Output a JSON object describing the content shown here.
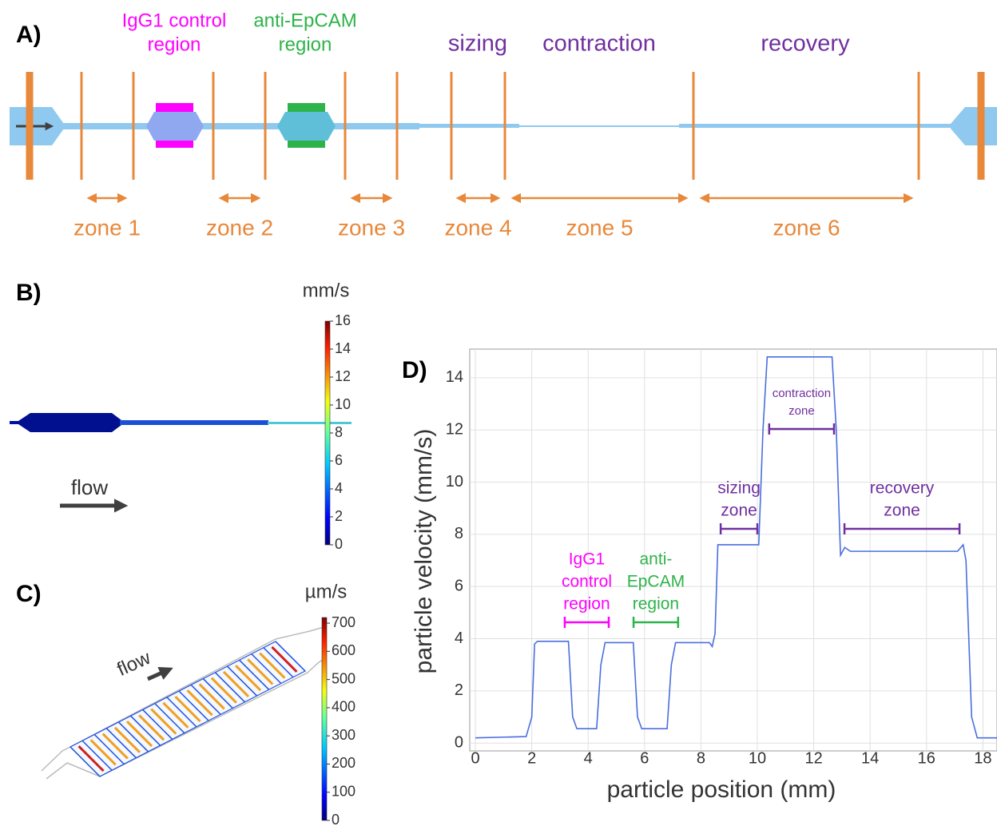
{
  "panel_a": {
    "label": "A)",
    "regions": [
      {
        "lines": [
          "IgG1 control",
          "region"
        ],
        "color": "#ff00ff"
      },
      {
        "lines": [
          "anti-EpCAM",
          "region"
        ],
        "color": "#2eb34a"
      }
    ],
    "sections": [
      "sizing",
      "contraction",
      "recovery"
    ],
    "zones": [
      "zone 1",
      "zone 2",
      "zone 3",
      "zone 4",
      "zone 5",
      "zone 6"
    ]
  },
  "panel_b": {
    "label": "B)",
    "unit": "mm/s",
    "flow": "flow",
    "lim": [
      0,
      16
    ],
    "ticks": [
      0,
      2,
      4,
      6,
      8,
      10,
      12,
      14,
      16
    ]
  },
  "panel_c": {
    "label": "C)",
    "unit": "µm/s",
    "flow": "flow",
    "lim": [
      0,
      720
    ],
    "ticks": [
      0,
      100,
      200,
      300,
      400,
      500,
      600,
      700
    ]
  },
  "chart_data": {
    "type": "line",
    "label": "D)",
    "x_label": "particle position (mm)",
    "y_label": "particle velocity (mm/s)",
    "color": "#4a6ee0",
    "grid": true,
    "xlim": [
      -0.2,
      18.5
    ],
    "ylim": [
      -0.3,
      15.1
    ],
    "xticks": [
      0,
      2,
      4,
      6,
      8,
      10,
      12,
      14,
      16,
      18
    ],
    "yticks": [
      0,
      2,
      4,
      6,
      8,
      10,
      12,
      14
    ],
    "x": [
      0,
      1.8,
      2.0,
      2.1,
      2.2,
      3.3,
      3.45,
      3.6,
      4.3,
      4.45,
      4.6,
      5.6,
      5.75,
      5.9,
      6.8,
      6.95,
      7.1,
      8.3,
      8.4,
      8.5,
      8.6,
      10.05,
      10.2,
      10.35,
      12.65,
      12.8,
      12.95,
      13.1,
      13.3,
      17.1,
      17.3,
      17.4,
      17.6,
      17.8,
      18.5
    ],
    "values": [
      0.2,
      0.25,
      1,
      3.8,
      3.9,
      3.9,
      1,
      0.55,
      0.55,
      3,
      3.85,
      3.85,
      1,
      0.55,
      0.55,
      3,
      3.85,
      3.85,
      3.7,
      4.2,
      7.6,
      7.6,
      12,
      14.8,
      14.8,
      12,
      7.2,
      7.5,
      7.35,
      7.35,
      7.6,
      7,
      1,
      0.2,
      0.2
    ],
    "annotations": [
      {
        "lines": [
          "IgG1",
          "control",
          "region"
        ],
        "x": [
          3.17,
          4.73
        ],
        "y": 4.63,
        "color": "#ff00ff"
      },
      {
        "lines": [
          "anti-",
          "EpCAM",
          "region"
        ],
        "x": [
          5.61,
          7.19
        ],
        "y": 4.63,
        "color": "#2eb34a"
      },
      {
        "lines": [
          "sizing",
          "zone"
        ],
        "x": [
          8.7,
          10.0
        ],
        "y": 8.21,
        "color": "#7030a0"
      },
      {
        "lines": [
          "contraction",
          "zone"
        ],
        "x": [
          10.42,
          12.72
        ],
        "y": 12.04,
        "color": "#7030a0"
      },
      {
        "lines": [
          "recovery",
          "zone"
        ],
        "x": [
          13.09,
          17.17
        ],
        "y": 8.21,
        "color": "#7030a0"
      }
    ]
  }
}
